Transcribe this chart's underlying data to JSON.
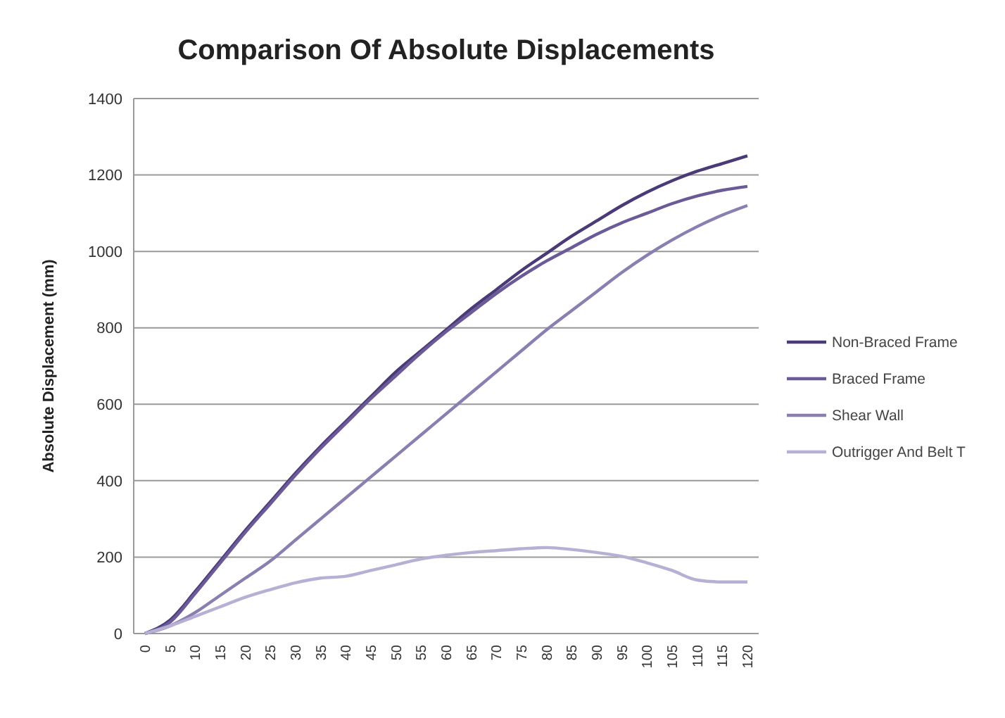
{
  "chart_data": {
    "type": "line",
    "title": "Comparison Of Absolute Displacements",
    "ylabel": "Absolute Displacement  (mm)",
    "categories": [
      "0",
      "5",
      "10",
      "15",
      "20",
      "25",
      "30",
      "35",
      "40",
      "45",
      "50",
      "55",
      "60",
      "65",
      "70",
      "75",
      "80",
      "85",
      "90",
      "95",
      "100",
      "105",
      "110",
      "115",
      "120"
    ],
    "ylim": [
      0,
      1400
    ],
    "yticks": [
      0,
      200,
      400,
      600,
      800,
      1000,
      1200,
      1400
    ],
    "grid": "y",
    "legend": "right",
    "marker": "none",
    "line_style": "solid",
    "series": [
      {
        "name": "Non-Braced Frame",
        "color": "#4b3a78",
        "values": [
          0,
          35,
          110,
          190,
          270,
          345,
          420,
          490,
          555,
          620,
          685,
          740,
          795,
          850,
          900,
          950,
          995,
          1040,
          1080,
          1120,
          1155,
          1185,
          1210,
          1230,
          1250
        ]
      },
      {
        "name": "Braced Frame",
        "color": "#6a5a98",
        "values": [
          0,
          30,
          105,
          185,
          265,
          340,
          415,
          485,
          550,
          615,
          675,
          735,
          790,
          840,
          890,
          935,
          975,
          1010,
          1045,
          1075,
          1100,
          1125,
          1145,
          1160,
          1170
        ]
      },
      {
        "name": "Shear Wall",
        "color": "#8a7fb0",
        "values": [
          0,
          20,
          55,
          100,
          145,
          190,
          245,
          300,
          355,
          410,
          465,
          520,
          575,
          630,
          685,
          740,
          795,
          845,
          895,
          945,
          990,
          1030,
          1065,
          1095,
          1120
        ]
      },
      {
        "name": "Outrigger And Belt T",
        "color": "#b8b0d4",
        "values": [
          0,
          20,
          45,
          70,
          95,
          115,
          133,
          145,
          150,
          165,
          180,
          195,
          205,
          212,
          217,
          222,
          225,
          220,
          212,
          202,
          185,
          165,
          140,
          135,
          135
        ]
      }
    ]
  }
}
